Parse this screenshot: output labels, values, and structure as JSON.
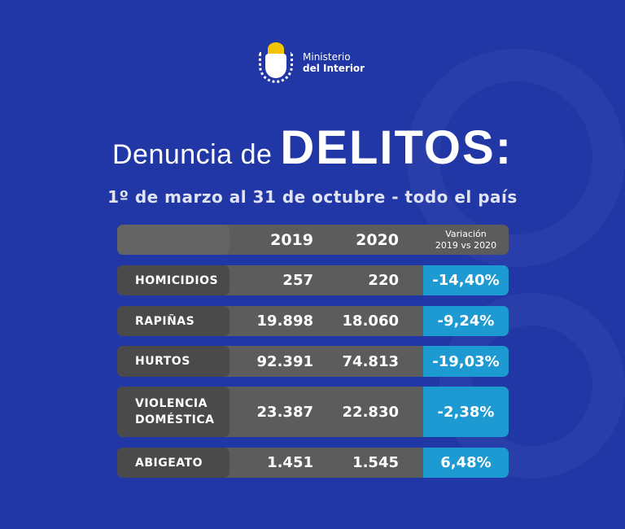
{
  "logo": {
    "line1": "Ministerio",
    "line2": "del Interior"
  },
  "title": {
    "light": "Denuncia de",
    "bold": "DELITOS:"
  },
  "subtitle": "1º de marzo al 31 de octubre - todo el país",
  "chart_data": {
    "type": "table",
    "title": "Denuncia de DELITOS: 1º de marzo al 31 de octubre - todo el país",
    "columns": [
      "",
      "2019",
      "2020",
      "Variación",
      "2019 vs 2020"
    ],
    "rows": [
      {
        "label": "HOMICIDIOS",
        "v2019": "257",
        "v2020": "220",
        "variation": "-14,40%"
      },
      {
        "label": "RAPIÑAS",
        "v2019": "19.898",
        "v2020": "18.060",
        "variation": "-9,24%"
      },
      {
        "label": "HURTOS",
        "v2019": "92.391",
        "v2020": "74.813",
        "variation": "-19,03%"
      },
      {
        "label": "VIOLENCIA DOMÉSTICA",
        "v2019": "23.387",
        "v2020": "22.830",
        "variation": "-2,38%"
      },
      {
        "label": "ABIGEATO",
        "v2019": "1.451",
        "v2020": "1.545",
        "variation": "6,48%"
      }
    ]
  },
  "colors": {
    "background": "#2137a6",
    "row": "#5c5c5c",
    "label_cell": "#4a4a4a",
    "variation_cell": "#1d9ad2"
  }
}
